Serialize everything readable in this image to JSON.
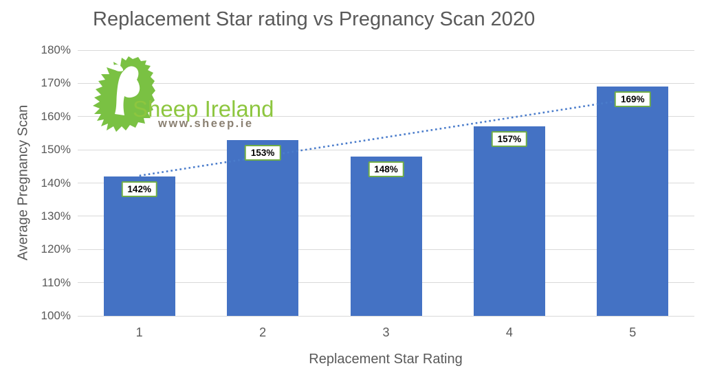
{
  "chart_data": {
    "type": "bar",
    "title": "Replacement Star rating vs Pregnancy Scan 2020",
    "xlabel": "Replacement Star Rating",
    "ylabel": "Average Pregnancy Scan",
    "categories": [
      "1",
      "2",
      "3",
      "4",
      "5"
    ],
    "values": [
      142,
      153,
      148,
      157,
      169
    ],
    "bar_labels": [
      "142%",
      "153%",
      "148%",
      "157%",
      "169%"
    ],
    "y_ticks": [
      "100%",
      "110%",
      "120%",
      "130%",
      "140%",
      "150%",
      "160%",
      "170%",
      "180%"
    ],
    "ylim": [
      100,
      180
    ],
    "grid": true,
    "legend": "none",
    "bar_color": "#4472c4",
    "gridline_color": "#d9d9d9",
    "axis_text_color": "#595959",
    "trendline": {
      "type": "linear",
      "style": "dotted",
      "color": "#4a7ccb"
    },
    "bar_label_style": {
      "border_color": "#70ad47",
      "background": "#ffffff",
      "text_color": "#000000"
    }
  },
  "logo": {
    "text": "Sheep Ireland",
    "url_text": "www.sheep.ie",
    "map_color": "#7ac143",
    "text_color": "#8dc63f",
    "url_color": "#8a8072"
  }
}
